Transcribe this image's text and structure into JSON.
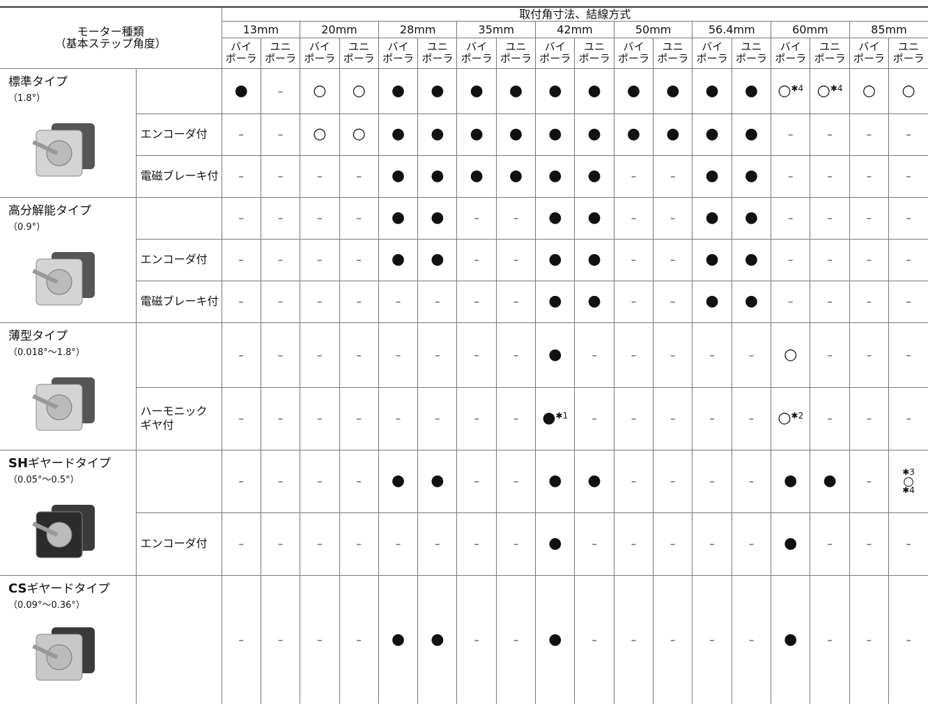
{
  "header": {
    "title": "モーター種類",
    "subtitle": "（基本ステップ角度）",
    "group": "取付角寸法、結線方式",
    "sizes": [
      "13mm",
      "20mm",
      "28mm",
      "35mm",
      "42mm",
      "50mm",
      "56.4mm",
      "60mm",
      "85mm"
    ],
    "wiring": [
      "バイ\nポーラ",
      "ユニ\nポーラ"
    ]
  },
  "groups": [
    {
      "name": "標準タイプ",
      "angle": "（1.8°）",
      "rows": [
        {
          "cells": [
            "●",
            "–",
            "○",
            "○",
            "●",
            "●",
            "●",
            "●",
            "●",
            "●",
            "●",
            "●",
            "●",
            "●",
            {
              "symbol": "○",
              "note": "✱4"
            },
            {
              "symbol": "○",
              "note": "✱4"
            },
            "○",
            "○"
          ]
        },
        {
          "variant": "エンコーダ付",
          "cells": [
            "–",
            "–",
            "○",
            "○",
            "●",
            "●",
            "●",
            "●",
            "●",
            "●",
            "●",
            "●",
            "●",
            "●",
            "–",
            "–",
            "–",
            "–"
          ]
        },
        {
          "variant": "電磁ブレーキ付",
          "cells": [
            "–",
            "–",
            "–",
            "–",
            "●",
            "●",
            "●",
            "●",
            "●",
            "●",
            "–",
            "–",
            "●",
            "●",
            "–",
            "–",
            "–",
            "–"
          ]
        }
      ]
    },
    {
      "name": "高分解能タイプ",
      "angle": "（0.9°）",
      "rows": [
        {
          "cells": [
            "–",
            "–",
            "–",
            "–",
            "●",
            "●",
            "–",
            "–",
            "●",
            "●",
            "–",
            "–",
            "●",
            "●",
            "–",
            "–",
            "–",
            "–"
          ]
        },
        {
          "variant": "エンコーダ付",
          "cells": [
            "–",
            "–",
            "–",
            "–",
            "●",
            "●",
            "–",
            "–",
            "●",
            "●",
            "–",
            "–",
            "●",
            "●",
            "–",
            "–",
            "–",
            "–"
          ]
        },
        {
          "variant": "電磁ブレーキ付",
          "cells": [
            "–",
            "–",
            "–",
            "–",
            "–",
            "–",
            "–",
            "–",
            "●",
            "●",
            "–",
            "–",
            "●",
            "●",
            "–",
            "–",
            "–",
            "–"
          ]
        }
      ]
    },
    {
      "name": "薄型タイプ",
      "angle": "（0.018°～1.8°）",
      "rows": [
        {
          "cells": [
            "–",
            "–",
            "–",
            "–",
            "–",
            "–",
            "–",
            "–",
            "●",
            "–",
            "–",
            "–",
            "–",
            "–",
            "○",
            "–",
            "–",
            "–"
          ]
        },
        {
          "variant": "ハーモニック\nギヤ付",
          "cells": [
            "–",
            "–",
            "–",
            "–",
            "–",
            "–",
            "–",
            "–",
            {
              "symbol": "●",
              "note": "✱1"
            },
            "–",
            "–",
            "–",
            "–",
            "–",
            {
              "symbol": "○",
              "note": "✱2"
            },
            "–",
            "–",
            "–"
          ]
        }
      ]
    },
    {
      "prefix": "SH",
      "name": "ギヤードタイプ",
      "angle": "（0.05°～0.5°）",
      "rows": [
        {
          "cells": [
            "–",
            "–",
            "–",
            "–",
            "●",
            "●",
            "–",
            "–",
            "●",
            "●",
            "–",
            "–",
            "–",
            "–",
            "●",
            "●",
            "–",
            {
              "note_above": "✱3",
              "symbol": "○",
              "note": "✱4"
            }
          ]
        },
        {
          "variant": "エンコーダ付",
          "cells": [
            "–",
            "–",
            "–",
            "–",
            "–",
            "–",
            "–",
            "–",
            "●",
            "–",
            "–",
            "–",
            "–",
            "–",
            "●",
            "–",
            "–",
            "–"
          ]
        }
      ]
    },
    {
      "prefix": "CS",
      "name": "ギヤードタイプ",
      "angle": "（0.09°～0.36°）",
      "rows": [
        {
          "cells": [
            "–",
            "–",
            "–",
            "–",
            "●",
            "●",
            "–",
            "–",
            "●",
            "–",
            "–",
            "–",
            "–",
            "–",
            "●",
            "–",
            "–",
            "–"
          ]
        }
      ]
    }
  ]
}
